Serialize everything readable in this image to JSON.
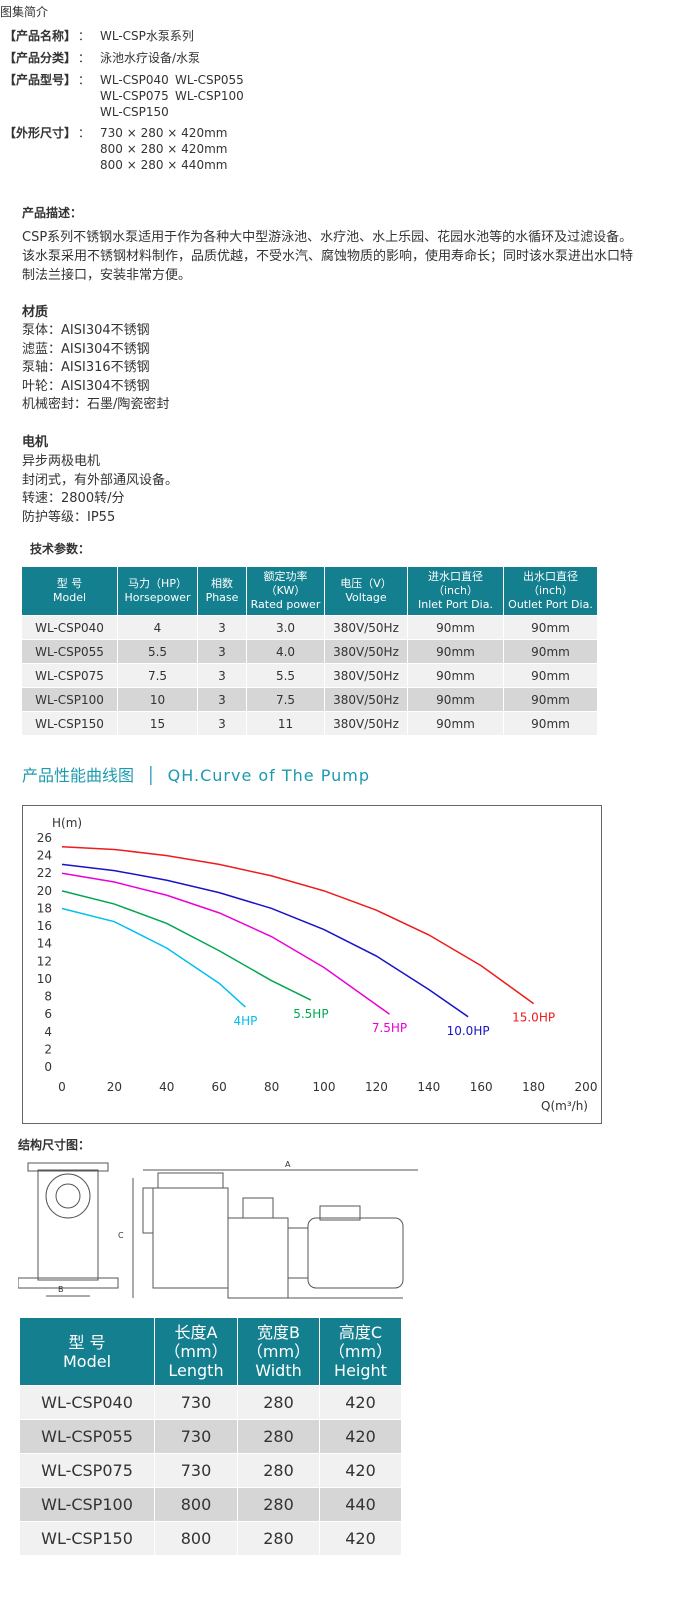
{
  "header": {
    "title": "图集简介"
  },
  "specs": [
    {
      "label": "【产品名称】",
      "sep": "：",
      "lines": [
        [
          "WL-CSP水泵系列"
        ]
      ]
    },
    {
      "label": "【产品分类】",
      "sep": "：",
      "lines": [
        [
          "泳池水疗设备/水泵"
        ]
      ]
    },
    {
      "label": "【产品型号】",
      "sep": "：",
      "lines": [
        [
          "WL-CSP040",
          "WL-CSP055"
        ],
        [
          "WL-CSP075",
          "WL-CSP100"
        ],
        [
          "WL-CSP150"
        ]
      ]
    },
    {
      "label": "【外形尺寸】",
      "sep": "：",
      "lines": [
        [
          "730 × 280 × 420mm"
        ],
        [
          "800 × 280 × 420mm"
        ],
        [
          "800 × 280 × 440mm"
        ]
      ]
    }
  ],
  "description": {
    "title": "产品描述：",
    "lines": [
      "CSP系列不锈钢水泵适用于作为各种大中型游泳池、水疗池、水上乐园、花园水池等的水循环及过滤设备。",
      "该水泵采用不锈钢材料制作，品质优越，不受水汽、腐蚀物质的影响，使用寿命长；同时该水泵进出水口特",
      "制法兰接口，安装非常方便。"
    ]
  },
  "materials": {
    "title": "材质",
    "lines": [
      "泵体：AISI304不锈钢",
      "滤蓝：AISI304不锈钢",
      "泵轴：AISI316不锈钢",
      "叶轮：AISI304不锈钢",
      "机械密封：石墨/陶瓷密封"
    ]
  },
  "motor": {
    "title": "电机",
    "lines": [
      "异步两极电机",
      "封闭式，有外部通风设备。",
      "转速：2800转/分",
      "防护等级：IP55"
    ]
  },
  "tech_table": {
    "title": "技术参数：",
    "header": [
      [
        "型 号",
        "Model"
      ],
      [
        "马力（HP）",
        "Horsepower"
      ],
      [
        "相数",
        "Phase"
      ],
      [
        "额定功率",
        "（KW）",
        "Rated power"
      ],
      [
        "电压（V）",
        "Voltage"
      ],
      [
        "进水口直径",
        "（inch）",
        "Inlet Port Dia."
      ],
      [
        "出水口直径",
        "（inch）",
        "Outlet Port Dia."
      ]
    ],
    "rows": [
      [
        "WL-CSP040",
        "4",
        "3",
        "3.0",
        "380V/50Hz",
        "90mm",
        "90mm"
      ],
      [
        "WL-CSP055",
        "5.5",
        "3",
        "4.0",
        "380V/50Hz",
        "90mm",
        "90mm"
      ],
      [
        "WL-CSP075",
        "7.5",
        "3",
        "5.5",
        "380V/50Hz",
        "90mm",
        "90mm"
      ],
      [
        "WL-CSP100",
        "10",
        "3",
        "7.5",
        "380V/50Hz",
        "90mm",
        "90mm"
      ],
      [
        "WL-CSP150",
        "15",
        "3",
        "11",
        "380V/50Hz",
        "90mm",
        "90mm"
      ]
    ]
  },
  "chart_section": {
    "title_cn": "产品性能曲线图",
    "title_en": "QH.Curve of The Pump"
  },
  "chart_data": {
    "type": "line",
    "y_label": "H(m)",
    "x_label": "Q(m³/h)",
    "xlim": [
      0,
      200
    ],
    "xticks": [
      0,
      20,
      40,
      60,
      80,
      100,
      120,
      140,
      160,
      180,
      200
    ],
    "ylim": [
      0,
      26
    ],
    "yticks": [
      0,
      2,
      4,
      6,
      8,
      10,
      12,
      14,
      16,
      18,
      20,
      22,
      24,
      26
    ],
    "grid": false,
    "series": [
      {
        "name": "4HP",
        "color": "#00c0ef",
        "x": [
          0,
          20,
          40,
          60,
          70
        ],
        "values": [
          18,
          16.5,
          13.5,
          9.5,
          6.8
        ]
      },
      {
        "name": "5.5HP",
        "color": "#00a651",
        "x": [
          0,
          20,
          40,
          60,
          80,
          95
        ],
        "values": [
          20,
          18.5,
          16.3,
          13.2,
          9.8,
          7.6
        ]
      },
      {
        "name": "7.5HP",
        "color": "#ec00d6",
        "x": [
          0,
          20,
          40,
          60,
          80,
          100,
          125
        ],
        "values": [
          22,
          21,
          19.5,
          17.5,
          14.8,
          11.3,
          6
        ]
      },
      {
        "name": "10.0HP",
        "color": "#1a12c8",
        "x": [
          0,
          20,
          40,
          60,
          80,
          100,
          120,
          140,
          155
        ],
        "values": [
          23,
          22.3,
          21.2,
          19.8,
          18,
          15.6,
          12.6,
          8.8,
          5.7
        ]
      },
      {
        "name": "15.0HP",
        "color": "#ee1c1c",
        "x": [
          0,
          20,
          40,
          60,
          80,
          100,
          120,
          140,
          160,
          180
        ],
        "values": [
          25,
          24.7,
          24,
          23,
          21.7,
          20,
          17.8,
          15,
          11.5,
          7.2
        ]
      }
    ]
  },
  "dimension_section": {
    "title": "结构尺寸图：",
    "labels": [
      "A",
      "B",
      "C"
    ]
  },
  "dim_table": {
    "header": [
      [
        "型 号",
        "Model"
      ],
      [
        "长度A",
        "（mm）",
        "Length"
      ],
      [
        "宽度B",
        "（mm）",
        "Width"
      ],
      [
        "高度C",
        "（mm）",
        "Height"
      ]
    ],
    "rows": [
      [
        "WL-CSP040",
        "730",
        "280",
        "420"
      ],
      [
        "WL-CSP055",
        "730",
        "280",
        "420"
      ],
      [
        "WL-CSP075",
        "730",
        "280",
        "420"
      ],
      [
        "WL-CSP100",
        "800",
        "280",
        "440"
      ],
      [
        "WL-CSP150",
        "800",
        "280",
        "420"
      ]
    ]
  }
}
